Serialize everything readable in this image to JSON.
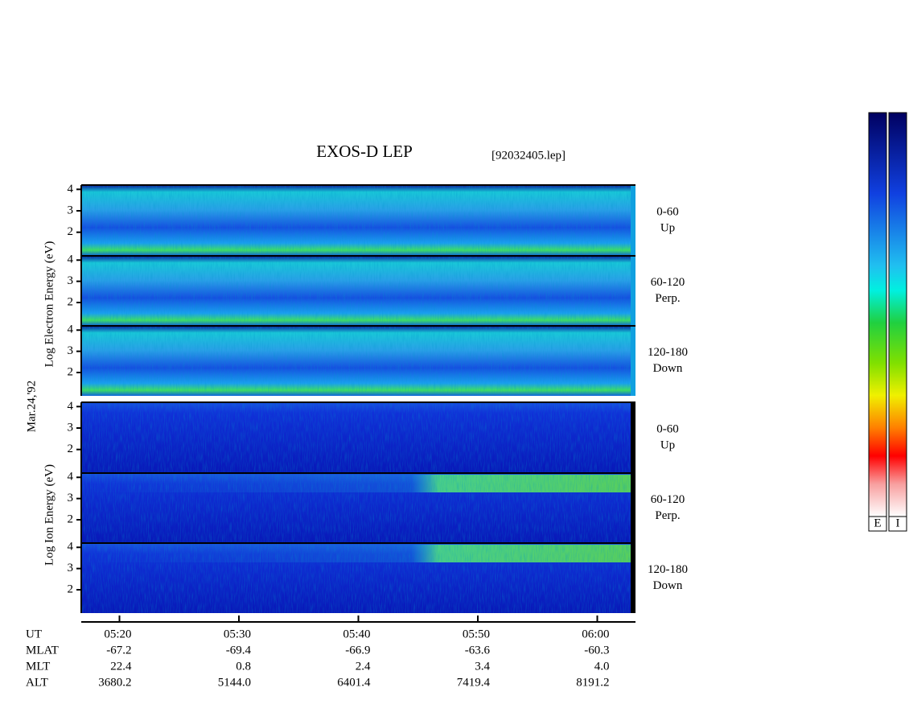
{
  "header": {
    "title": "EXOS-D LEP",
    "file": "[92032405.lep]"
  },
  "side_labels": {
    "electron": "Log Electron Energy (eV)",
    "date": "Mar.24,'92",
    "ion": "Log Ion Energy (eV)"
  },
  "panels": [
    {
      "group": "electron",
      "angle": "0-60",
      "direction": "Up",
      "ylim": [
        0.9,
        4.2
      ],
      "yticks": [
        2,
        3,
        4
      ]
    },
    {
      "group": "electron",
      "angle": "60-120",
      "direction": "Perp.",
      "ylim": [
        0.9,
        4.2
      ],
      "yticks": [
        2,
        3,
        4
      ]
    },
    {
      "group": "electron",
      "angle": "120-180",
      "direction": "Down",
      "ylim": [
        0.9,
        4.2
      ],
      "yticks": [
        2,
        3,
        4
      ]
    },
    {
      "group": "ion",
      "angle": "0-60",
      "direction": "Up",
      "ylim": [
        0.9,
        4.2
      ],
      "yticks": [
        2,
        3,
        4
      ]
    },
    {
      "group": "ion",
      "angle": "60-120",
      "direction": "Perp.",
      "ylim": [
        0.9,
        4.2
      ],
      "yticks": [
        2,
        3,
        4
      ]
    },
    {
      "group": "ion",
      "angle": "120-180",
      "direction": "Down",
      "ylim": [
        0.9,
        4.2
      ],
      "yticks": [
        2,
        3,
        4
      ]
    }
  ],
  "time_axis": {
    "xlim": [
      316.8,
      363.2
    ],
    "xticks": [
      {
        "value": 320,
        "label": "05:20"
      },
      {
        "value": 330,
        "label": "05:30"
      },
      {
        "value": 340,
        "label": "05:40"
      },
      {
        "value": 350,
        "label": "05:50"
      },
      {
        "value": 360,
        "label": "06:00"
      }
    ]
  },
  "orbit_table": {
    "row_labels": [
      "UT",
      "MLAT",
      "MLT",
      "ALT"
    ],
    "rows": [
      [
        "-67.2",
        "-69.4",
        "-66.9",
        "-63.6",
        "-60.3"
      ],
      [
        "22.4",
        "0.8",
        "2.4",
        "3.4",
        "4.0"
      ],
      [
        "3680.2",
        "5144.0",
        "6401.4",
        "7419.4",
        "8191.2"
      ]
    ]
  },
  "color_bars": [
    "E",
    "I"
  ]
}
